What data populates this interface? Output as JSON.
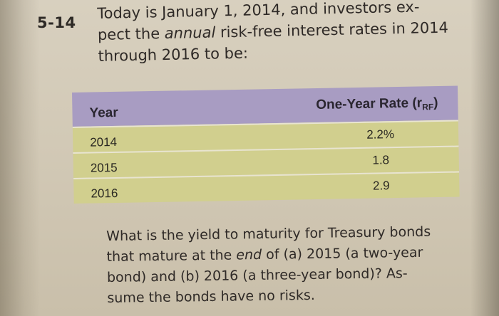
{
  "problem": {
    "number": "5-14",
    "intro_lines": [
      "Today is January 1, 2014, and investors ex-",
      "pect the ",
      "through 2016 to be:"
    ],
    "intro_emphasis": "annual",
    "intro_line2_rest": " risk-free interest rates in 2014"
  },
  "table": {
    "header": {
      "year": "Year",
      "rate_main": "One-Year Rate (r",
      "rate_sub": "RF",
      "rate_close": ")"
    },
    "rows": [
      {
        "year": "2014",
        "rate": "2.2%"
      },
      {
        "year": "2015",
        "rate": "1.8"
      },
      {
        "year": "2016",
        "rate": "2.9"
      }
    ]
  },
  "question": {
    "line1": "What is the yield to maturity for Treasury bonds",
    "line2_start": "that mature at the ",
    "line2_emphasis": "end",
    "line2_rest": " of (a) 2015 (a two-year",
    "line3": "bond) and (b) 2016 (a three-year bond)? As-",
    "line4": "sume the bonds have no risks."
  },
  "colors": {
    "page": "#d4cbb8",
    "header_bg": "#a89cc2",
    "row_bg": "#d1cf8e",
    "text": "#2f2a27"
  }
}
